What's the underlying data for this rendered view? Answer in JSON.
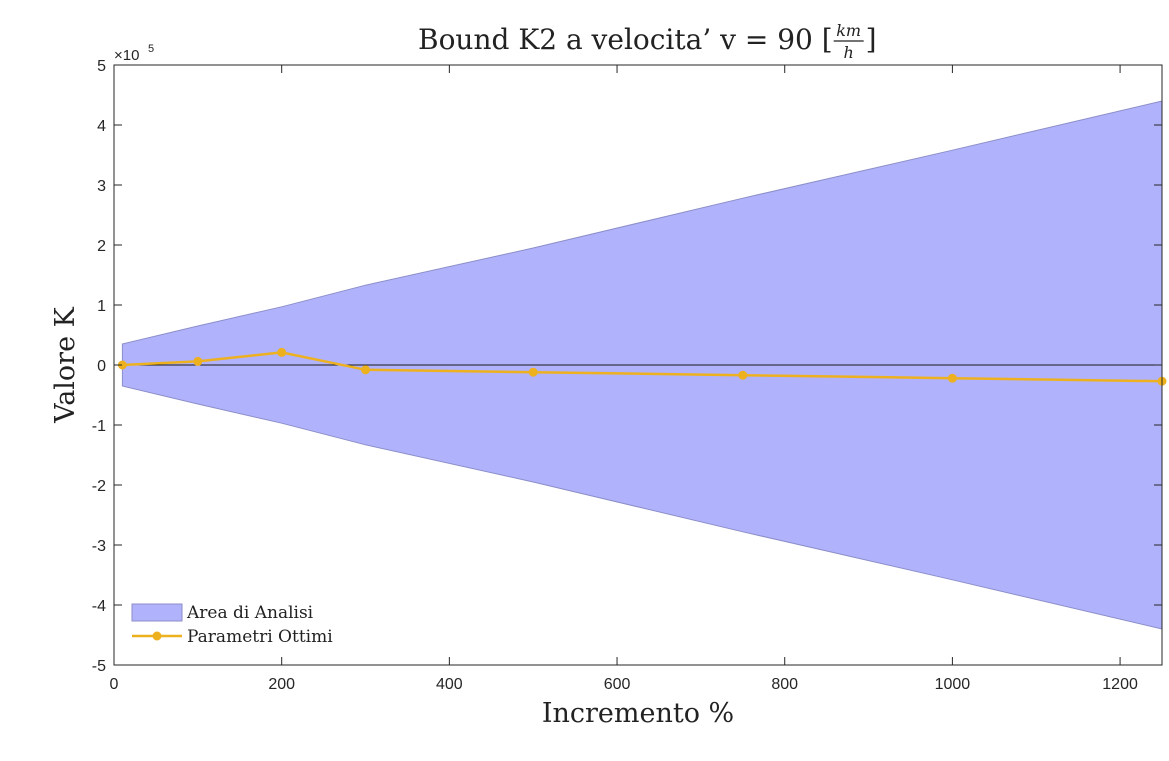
{
  "chart_data": {
    "type": "area",
    "title": {
      "prefix": "Bound K2 a velocita’ v = 90 [",
      "frac_num": "km",
      "frac_den": "h",
      "suffix": "]"
    },
    "xlabel": "Incremento %",
    "ylabel": "Valore K",
    "exponent_label": "×10",
    "exponent_power": "5",
    "xlim": [
      0,
      1250
    ],
    "ylim": [
      -5,
      5
    ],
    "y_scale": 100000,
    "xticks": [
      0,
      200,
      400,
      600,
      800,
      1000,
      1200
    ],
    "yticks": [
      -5,
      -4,
      -3,
      -2,
      -1,
      0,
      1,
      2,
      3,
      4,
      5
    ],
    "legend_position": "bottom-left",
    "grid": false,
    "band": {
      "name": "Area di Analisi",
      "color": "#b0b2fb",
      "edge_color": "#8c8ec9",
      "x": [
        10,
        100,
        200,
        300,
        500,
        750,
        1000,
        1250
      ],
      "upper": [
        0.35,
        0.65,
        0.97,
        1.33,
        1.95,
        2.78,
        3.58,
        4.4
      ],
      "lower": [
        -0.35,
        -0.65,
        -0.97,
        -1.33,
        -1.95,
        -2.78,
        -3.58,
        -4.4
      ]
    },
    "series": [
      {
        "name": "Parametri Ottimi",
        "color": "#edb120",
        "x": [
          10,
          100,
          200,
          300,
          500,
          750,
          1000,
          1250
        ],
        "values": [
          0.0,
          0.06,
          0.21,
          -0.08,
          -0.12,
          -0.17,
          -0.22,
          -0.27
        ]
      }
    ]
  }
}
